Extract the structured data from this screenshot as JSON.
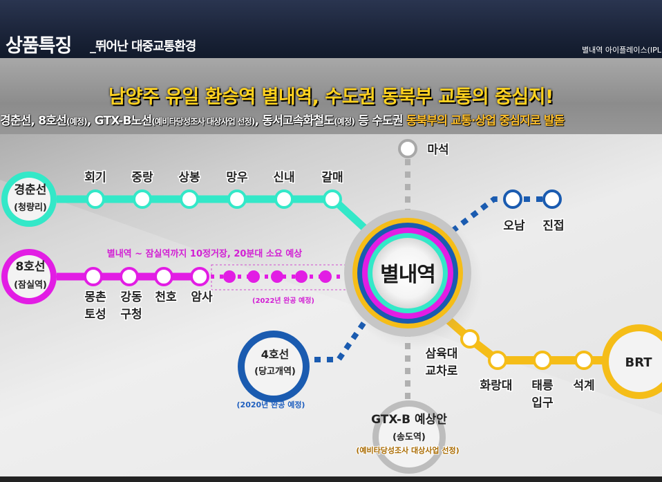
{
  "header": {
    "title": "상품특징",
    "subtitle": "_뛰어난 대중교통환경",
    "right_label": "별내역 아이플레이스(IPL"
  },
  "headline": "남양주 유일 환승역 별내역, 수도권 동북부 교통의 중심지!",
  "subline": {
    "part1": "경춘선, 8호선",
    "note1": "(예정)",
    "part2": ", GTX-B노선",
    "note2": "(예비타당성조사 대상사업 선정)",
    "part3": ", 동서고속화철도",
    "note3": "(예정)",
    "part4": " 등 수도권 ",
    "highlight": "동북부의 교통·상업 중심지로 발돋"
  },
  "hub": {
    "label": "별내역"
  },
  "lines": {
    "gyeongchun": {
      "name": "경춘선",
      "sub": "(청량리)",
      "color": "#33e8c8",
      "stations": [
        "회기",
        "중랑",
        "상봉",
        "망우",
        "신내",
        "갈매"
      ]
    },
    "line8": {
      "name": "8호선",
      "sub": "(잠실역)",
      "color": "#e21de4",
      "stations": [
        "몽촌\n토성",
        "강동\n구청",
        "천호",
        "암사"
      ],
      "note": "별내역 ~ 잠실역까지 10정거장, 20분대 소요 예상",
      "completion": "(2022년 완공 예정)"
    },
    "line4": {
      "name": "4호선",
      "sub": "(당고개역)",
      "color": "#1a5bb0",
      "completion": "(2020년 완공 예정)"
    },
    "north": {
      "station": "마석",
      "color": "#a8a8a8"
    },
    "east": {
      "stations": [
        "오남",
        "진접"
      ],
      "color": "#1a5bb0"
    },
    "brt": {
      "name": "BRT",
      "color": "#f5bd18",
      "stations": [
        "삼육대\n교차로",
        "화랑대",
        "태릉\n입구",
        "석계"
      ]
    },
    "gtx": {
      "name": "GTX-B 예상안",
      "sub": "(송도역)",
      "note": "(예비타당성조사 대상사업 선정)",
      "color": "#bdbdbd"
    }
  }
}
